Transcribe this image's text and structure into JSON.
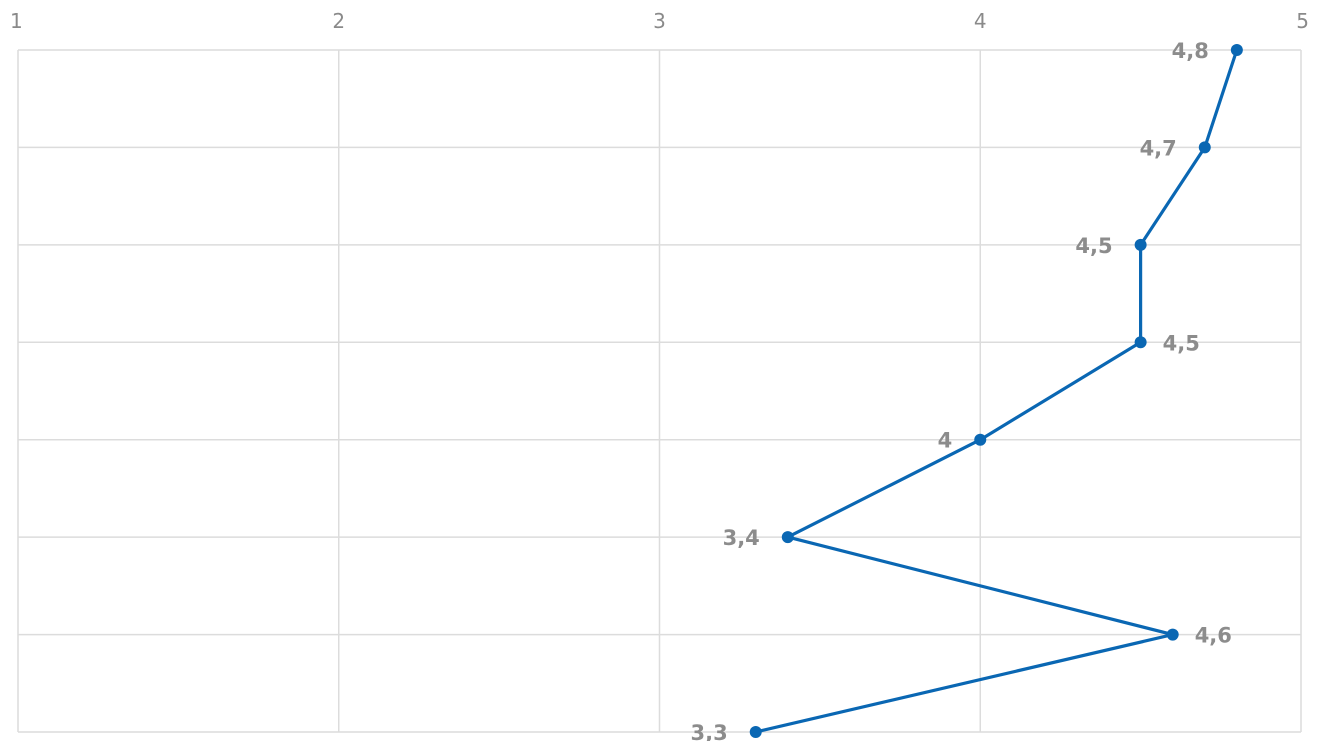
{
  "chart_data": {
    "type": "line",
    "orientation": "vertical",
    "title": "",
    "xlabel": "",
    "ylabel": "",
    "xlim": [
      1,
      5
    ],
    "x_ticks": [
      "1",
      "2",
      "3",
      "4",
      "5"
    ],
    "grid": true,
    "legend": "none",
    "series": [
      {
        "values": [
          4.8,
          4.7,
          4.5,
          4.5,
          4.0,
          3.4,
          4.6,
          3.3
        ],
        "labels": [
          "4,8",
          "4,7",
          "4,5",
          "4,5",
          "4",
          "3,4",
          "4,6",
          "3,3"
        ],
        "label_side": [
          "left",
          "left",
          "left",
          "right",
          "left",
          "left",
          "right",
          "left"
        ]
      }
    ],
    "colors": {
      "line": "#0a67b3",
      "grid": "#dcdcdc",
      "tick_text": "#8a8a8a",
      "data_label": "#8c8c8c"
    }
  }
}
